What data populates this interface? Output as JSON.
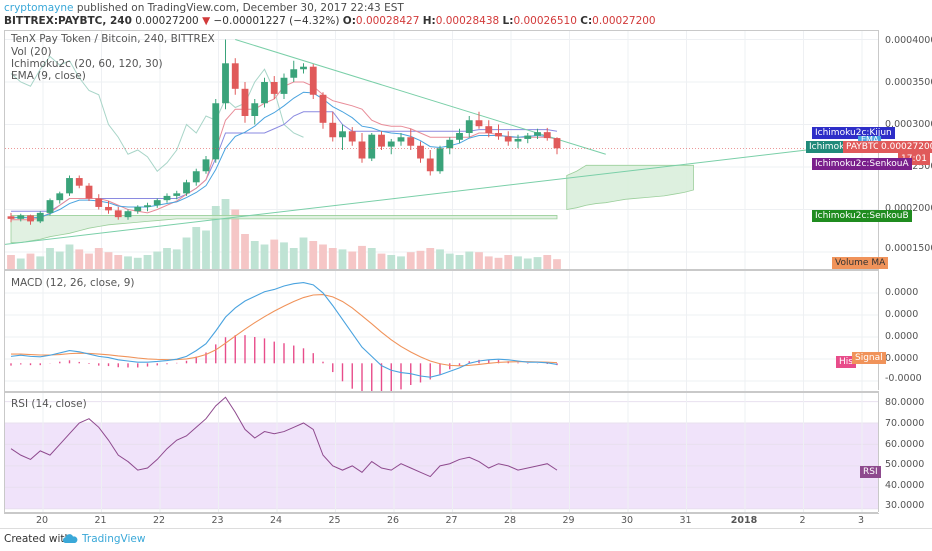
{
  "header": {
    "publisher": "cryptomayne",
    "published_text": "published on TradingView.com, December 30, 2017 22:43 EST",
    "symbol": "BITTREX:PAYBTC, 240",
    "last": "0.00027200",
    "change": "−0.00001227 (−4.32%)",
    "o_label": "O:",
    "o": "0.00028427",
    "h_label": "H:",
    "h": "0.00028438",
    "l_label": "L:",
    "l": "0.00026510",
    "c_label": "C:",
    "c": "0.00027200"
  },
  "price_pane": {
    "title": "TenX Pay Token / Bitcoin, 240, BITTREX",
    "indicators": [
      "Vol (20)",
      "Ichimoku2c (20, 60, 120, 30)",
      "EMA (9, close)"
    ],
    "y_ticks": [
      "0.00040000",
      "0.00035000",
      "0.00030000",
      "0.00025000",
      "0.00020000",
      "0.00015000"
    ],
    "tags": {
      "kijun": "Ichimoku2c:Kijun",
      "tenkan": "Ichimoku2",
      "symbol": "PAYBTC",
      "price": "0.00027200",
      "countdown": "17:01",
      "senkou_a": "Ichimoku2c:SenkouA",
      "senkou_b": "Ichimoku2c:SenkouB",
      "ema": "EMA",
      "volume_ma": "Volume MA"
    }
  },
  "macd_pane": {
    "title": "MACD (12, 26, close, 9)",
    "y_ticks": [
      "0.0000",
      "0.0000",
      "0.0000",
      "0.0000",
      "-0.0000"
    ],
    "tags": {
      "signal": "Signal",
      "histogram": "His"
    }
  },
  "rsi_pane": {
    "title": "RSI (14, close)",
    "y_ticks": [
      "80.0000",
      "70.0000",
      "60.0000",
      "50.0000",
      "40.0000",
      "30.0000"
    ],
    "tags": {
      "rsi": "RSI"
    }
  },
  "x_axis": {
    "ticks": [
      "20",
      "21",
      "22",
      "23",
      "24",
      "25",
      "26",
      "27",
      "28",
      "29",
      "30",
      "31",
      "2018",
      "2",
      "3"
    ]
  },
  "footer": {
    "created": "Created with",
    "brand": "TradingView"
  },
  "colors": {
    "up": "#3aa37a",
    "down": "#e05a5a",
    "macd": "#4aa3df",
    "signal": "#f0935a",
    "rsi": "#8e4a8e",
    "rsi_band": "#f0e3fa",
    "cloud": "#d9eedb",
    "kijun": "#2e2ec8",
    "tenkan": "#e88c98",
    "senkou_a": "#7a1f8c",
    "senkou_b": "#1f8c1f",
    "trend": "#7acfa8"
  },
  "chart_data": [
    {
      "type": "candlestick",
      "title": "TenX Pay Token / Bitcoin, 240, BITTREX",
      "ylim": [
        0.00013,
        0.00041
      ],
      "x_ticks": [
        "20",
        "21",
        "22",
        "23",
        "24",
        "25",
        "26",
        "27",
        "28",
        "29",
        "30",
        "31",
        "2018",
        "2",
        "3"
      ],
      "candles": [
        [
          0.000192,
          0.000196,
          0.000185,
          0.000189
        ],
        [
          0.000189,
          0.000195,
          0.000186,
          0.000193
        ],
        [
          0.000193,
          0.000194,
          0.000182,
          0.000186
        ],
        [
          0.000186,
          0.000198,
          0.000184,
          0.000196
        ],
        [
          0.000196,
          0.000213,
          0.000193,
          0.000211
        ],
        [
          0.000211,
          0.000221,
          0.000207,
          0.000219
        ],
        [
          0.000219,
          0.00024,
          0.000216,
          0.000237
        ],
        [
          0.000237,
          0.00024,
          0.000225,
          0.000228
        ],
        [
          0.000228,
          0.000231,
          0.00021,
          0.000213
        ],
        [
          0.000213,
          0.000218,
          0.0002,
          0.000203
        ],
        [
          0.000203,
          0.00021,
          0.000195,
          0.000199
        ],
        [
          0.000199,
          0.000203,
          0.000188,
          0.000191
        ],
        [
          0.000191,
          0.0002,
          0.000188,
          0.000198
        ],
        [
          0.000198,
          0.000205,
          0.000195,
          0.000203
        ],
        [
          0.000203,
          0.000208,
          0.000198,
          0.000205
        ],
        [
          0.000205,
          0.000213,
          0.000202,
          0.000211
        ],
        [
          0.000211,
          0.000219,
          0.000208,
          0.000216
        ],
        [
          0.000216,
          0.000222,
          0.000212,
          0.000219
        ],
        [
          0.000219,
          0.000235,
          0.000216,
          0.000232
        ],
        [
          0.000232,
          0.000248,
          0.000228,
          0.000245
        ],
        [
          0.000245,
          0.000263,
          0.000242,
          0.000259
        ],
        [
          0.000259,
          0.00033,
          0.000255,
          0.000325
        ],
        [
          0.000325,
          0.0004,
          0.000318,
          0.000372
        ],
        [
          0.000372,
          0.000378,
          0.000335,
          0.000342
        ],
        [
          0.000342,
          0.00035,
          0.000302,
          0.00031
        ],
        [
          0.00031,
          0.00033,
          0.0003,
          0.000325
        ],
        [
          0.000325,
          0.000355,
          0.00032,
          0.00035
        ],
        [
          0.00035,
          0.000357,
          0.00033,
          0.000336
        ],
        [
          0.000336,
          0.00036,
          0.00033,
          0.000355
        ],
        [
          0.000355,
          0.000375,
          0.00035,
          0.000365
        ],
        [
          0.000365,
          0.000372,
          0.00036,
          0.000368
        ],
        [
          0.000368,
          0.000371,
          0.00033,
          0.000335
        ],
        [
          0.000335,
          0.000338,
          0.000295,
          0.000302
        ],
        [
          0.000302,
          0.000315,
          0.00028,
          0.000285
        ],
        [
          0.000285,
          0.0003,
          0.00027,
          0.000292
        ],
        [
          0.000292,
          0.000297,
          0.000275,
          0.00028
        ],
        [
          0.00028,
          0.00029,
          0.000255,
          0.00026
        ],
        [
          0.00026,
          0.00029,
          0.000257,
          0.000288
        ],
        [
          0.000288,
          0.000292,
          0.00027,
          0.000274
        ],
        [
          0.000274,
          0.000283,
          0.000265,
          0.00028
        ],
        [
          0.00028,
          0.00029,
          0.000275,
          0.000285
        ],
        [
          0.000285,
          0.000295,
          0.00027,
          0.000275
        ],
        [
          0.000275,
          0.00028,
          0.000255,
          0.00026
        ],
        [
          0.00026,
          0.00027,
          0.00024,
          0.000245
        ],
        [
          0.000245,
          0.000275,
          0.000242,
          0.000272
        ],
        [
          0.000272,
          0.000285,
          0.000265,
          0.000282
        ],
        [
          0.000282,
          0.000295,
          0.000278,
          0.00029
        ],
        [
          0.00029,
          0.00031,
          0.000285,
          0.000305
        ],
        [
          0.000305,
          0.000315,
          0.000295,
          0.000298
        ],
        [
          0.000298,
          0.000305,
          0.000285,
          0.00029
        ],
        [
          0.00029,
          0.0003,
          0.000282,
          0.000286
        ],
        [
          0.000286,
          0.000292,
          0.000275,
          0.00028
        ],
        [
          0.00028,
          0.000288,
          0.000272,
          0.000283
        ],
        [
          0.000283,
          0.00029,
          0.000278,
          0.000287
        ],
        [
          0.000287,
          0.000295,
          0.000283,
          0.000291
        ],
        [
          0.000291,
          0.000296,
          0.000281,
          0.000284
        ],
        [
          0.000284,
          0.000285,
          0.000265,
          0.000272
        ]
      ],
      "volume": [
        0.2,
        0.15,
        0.22,
        0.18,
        0.3,
        0.25,
        0.35,
        0.28,
        0.22,
        0.3,
        0.24,
        0.2,
        0.18,
        0.16,
        0.2,
        0.25,
        0.3,
        0.28,
        0.45,
        0.6,
        0.55,
        0.9,
        1.0,
        0.85,
        0.5,
        0.4,
        0.35,
        0.42,
        0.38,
        0.3,
        0.45,
        0.4,
        0.35,
        0.3,
        0.28,
        0.25,
        0.33,
        0.3,
        0.22,
        0.2,
        0.18,
        0.24,
        0.26,
        0.3,
        0.28,
        0.22,
        0.2,
        0.25,
        0.24,
        0.18,
        0.16,
        0.2,
        0.18,
        0.15,
        0.17,
        0.2,
        0.14
      ],
      "ema": [
        0.00019,
        0.000191,
        0.00019,
        0.000191,
        0.000195,
        0.0002,
        0.000207,
        0.000211,
        0.000211,
        0.00021,
        0.000208,
        0.000204,
        0.000203,
        0.000203,
        0.000203,
        0.000205,
        0.000207,
        0.000209,
        0.000214,
        0.00022,
        0.000228,
        0.000247,
        0.000272,
        0.000286,
        0.000291,
        0.000298,
        0.000308,
        0.000314,
        0.000322,
        0.000331,
        0.000338,
        0.000337,
        0.00033,
        0.000321,
        0.000315,
        0.000308,
        0.000298,
        0.000296,
        0.000292,
        0.00029,
        0.000289,
        0.000286,
        0.000281,
        0.000274,
        0.000273,
        0.000275,
        0.000278,
        0.000284,
        0.000287,
        0.000287,
        0.000287,
        0.000286,
        0.000285,
        0.000286,
        0.000287,
        0.000286,
        0.000283
      ],
      "kijun": [
        0.000198,
        0.000198,
        0.000198,
        0.000198,
        0.000198,
        0.000205,
        0.000213,
        0.000213,
        0.000213,
        0.000213,
        0.000213,
        0.000213,
        0.000213,
        0.000213,
        0.000213,
        0.000213,
        0.000213,
        0.000213,
        0.000218,
        0.000225,
        0.000235,
        0.00026,
        0.00029,
        0.00029,
        0.00029,
        0.00029,
        0.00029,
        0.000295,
        0.0003,
        0.00031,
        0.000315,
        0.000315,
        0.000315,
        0.000315,
        0.0003,
        0.000292,
        0.000292,
        0.000292,
        0.000292,
        0.000292,
        0.000292,
        0.000292,
        0.000292,
        0.000292,
        0.000292,
        0.000292,
        0.000292,
        0.000292,
        0.000294,
        0.000294,
        0.000294,
        0.000294,
        0.000294,
        0.000294,
        0.000294,
        0.000294,
        0.000292
      ],
      "tenkan": [
        0.000188,
        0.000188,
        0.000188,
        0.00019,
        0.000196,
        0.000205,
        0.000213,
        0.000213,
        0.000213,
        0.000213,
        0.00021,
        0.000205,
        0.0002,
        0.000198,
        0.000196,
        0.0002,
        0.000205,
        0.00021,
        0.000218,
        0.000225,
        0.000235,
        0.00027,
        0.000305,
        0.000318,
        0.000318,
        0.000318,
        0.000325,
        0.00033,
        0.000345,
        0.00035,
        0.00035,
        0.000345,
        0.000335,
        0.000328,
        0.000325,
        0.000322,
        0.000318,
        0.000305,
        0.0003,
        0.000298,
        0.000298,
        0.000295,
        0.00029,
        0.000285,
        0.000285,
        0.000285,
        0.000285,
        0.000285,
        0.00029,
        0.00029,
        0.000288,
        0.000285,
        0.000285,
        0.000285,
        0.000285,
        0.000285,
        0.000283
      ],
      "lagging": [
        0.00036,
        0.00035,
        0.000345,
        0.000365,
        0.00038,
        0.00037,
        0.000375,
        0.000355,
        0.00034,
        0.000335,
        0.0003,
        0.000285,
        0.000265,
        0.00027,
        0.000262,
        0.000245,
        0.000255,
        0.00027,
        0.0003,
        0.00029,
        0.00031,
        0.000305,
        0.00033,
        0.00032,
        0.000325,
        0.00035,
        0.000365,
        0.00034,
        0.0003,
        0.00029,
        0.000285
      ],
      "cloud_bottom": [
        0.000161,
        0.000161,
        0.000163,
        0.000165,
        0.000168,
        0.00017,
        0.000172,
        0.000175,
        0.000178,
        0.00018,
        0.000182,
        0.000183,
        0.000184,
        0.000185,
        0.000186,
        0.000187,
        0.000188,
        0.000189,
        0.000189,
        0.000189,
        0.000189,
        0.000189,
        0.000189,
        0.000189,
        0.000189,
        0.000189,
        0.000189,
        0.000189,
        0.000189,
        0.000189,
        0.000189,
        0.000189,
        0.000189,
        0.000189,
        0.000189,
        0.000189,
        0.000189,
        0.000189,
        0.000189,
        0.000189,
        0.000189,
        0.000189,
        0.000189,
        0.000189,
        0.000189,
        0.000189,
        0.000189,
        0.000189,
        0.000189,
        0.000189,
        0.000189,
        0.000189,
        0.000189,
        0.000189,
        0.000189,
        0.000189,
        0.000189
      ],
      "cloud_top": [
        0.000193,
        0.000193,
        0.000193,
        0.000193,
        0.000193,
        0.000193,
        0.000193,
        0.000193,
        0.000193,
        0.000193,
        0.000193,
        0.000193,
        0.000193,
        0.000193,
        0.000193,
        0.000193,
        0.000193,
        0.000193,
        0.000193,
        0.000193,
        0.000193,
        0.000193,
        0.000193,
        0.000193,
        0.000193,
        0.000193,
        0.000193,
        0.000193,
        0.000193,
        0.000193,
        0.000193,
        0.000193,
        0.000193,
        0.000193,
        0.000193,
        0.000193,
        0.000193,
        0.000193,
        0.000193,
        0.000193,
        0.000193,
        0.000193,
        0.000193,
        0.000193,
        0.000193,
        0.000193,
        0.000193,
        0.000193,
        0.000193,
        0.000193,
        0.000193,
        0.000193,
        0.000193,
        0.000193,
        0.000193,
        0.000193,
        0.000193
      ],
      "future_cloud_bottom": [
        0.0002,
        0.000202,
        0.000205,
        0.000207,
        0.000208,
        0.00021,
        0.000212,
        0.000213,
        0.000214,
        0.000215,
        0.000216,
        0.000218,
        0.00022,
        0.000223
      ],
      "future_cloud_top": [
        0.00024,
        0.000245,
        0.000252,
        0.000252,
        0.000252,
        0.000252,
        0.000252,
        0.000252,
        0.000252,
        0.000252,
        0.000252,
        0.000252,
        0.000252,
        0.000252
      ],
      "trendlines": [
        {
          "from": [
            0.0004
          ],
          "to": [
            0.000265
          ]
        },
        {
          "from": [
            0.000159
          ],
          "to": [
            0.00028
          ]
        }
      ]
    },
    {
      "type": "line",
      "title": "MACD (12, 26, close, 9)",
      "series": [
        {
          "name": "MACD",
          "values": [
            0.3,
            0.35,
            0.3,
            0.28,
            0.35,
            0.45,
            0.55,
            0.5,
            0.4,
            0.3,
            0.25,
            0.15,
            0.1,
            0.05,
            0.05,
            0.08,
            0.12,
            0.18,
            0.3,
            0.55,
            0.85,
            1.4,
            2.0,
            2.4,
            2.7,
            2.9,
            3.1,
            3.2,
            3.35,
            3.45,
            3.5,
            3.4,
            3.05,
            2.5,
            1.9,
            1.3,
            0.7,
            0.3,
            -0.1,
            -0.3,
            -0.4,
            -0.45,
            -0.55,
            -0.6,
            -0.5,
            -0.35,
            -0.2,
            0.0,
            0.1,
            0.15,
            0.18,
            0.15,
            0.1,
            0.05,
            0.05,
            0.02,
            -0.05
          ]
        },
        {
          "name": "Signal",
          "values": [
            0.4,
            0.4,
            0.38,
            0.36,
            0.36,
            0.38,
            0.42,
            0.44,
            0.43,
            0.4,
            0.37,
            0.32,
            0.28,
            0.23,
            0.19,
            0.17,
            0.16,
            0.16,
            0.19,
            0.26,
            0.38,
            0.58,
            0.87,
            1.18,
            1.48,
            1.76,
            2.02,
            2.26,
            2.48,
            2.68,
            2.85,
            2.96,
            2.98,
            2.88,
            2.68,
            2.4,
            2.06,
            1.71,
            1.35,
            1.02,
            0.73,
            0.49,
            0.28,
            0.1,
            -0.02,
            -0.09,
            -0.11,
            -0.09,
            -0.05,
            0.0,
            0.04,
            0.06,
            0.07,
            0.07,
            0.06,
            0.05,
            0.03
          ]
        }
      ],
      "ylim": [
        -1.2,
        4.0
      ]
    },
    {
      "type": "line",
      "title": "RSI (14, close)",
      "series": [
        {
          "name": "RSI",
          "values": [
            58,
            55,
            53,
            57,
            55,
            60,
            65,
            70,
            72,
            68,
            62,
            55,
            52,
            48,
            49,
            53,
            58,
            62,
            64,
            68,
            72,
            78,
            82,
            75,
            67,
            63,
            66,
            65,
            66,
            68,
            70,
            67,
            55,
            50,
            48,
            50,
            47,
            52,
            49,
            48,
            51,
            49,
            47,
            45,
            50,
            51,
            53,
            54,
            52,
            49,
            51,
            50,
            48,
            49,
            50,
            51,
            48
          ]
        }
      ],
      "ylim": [
        28,
        84
      ],
      "bands": [
        30,
        70
      ]
    }
  ]
}
